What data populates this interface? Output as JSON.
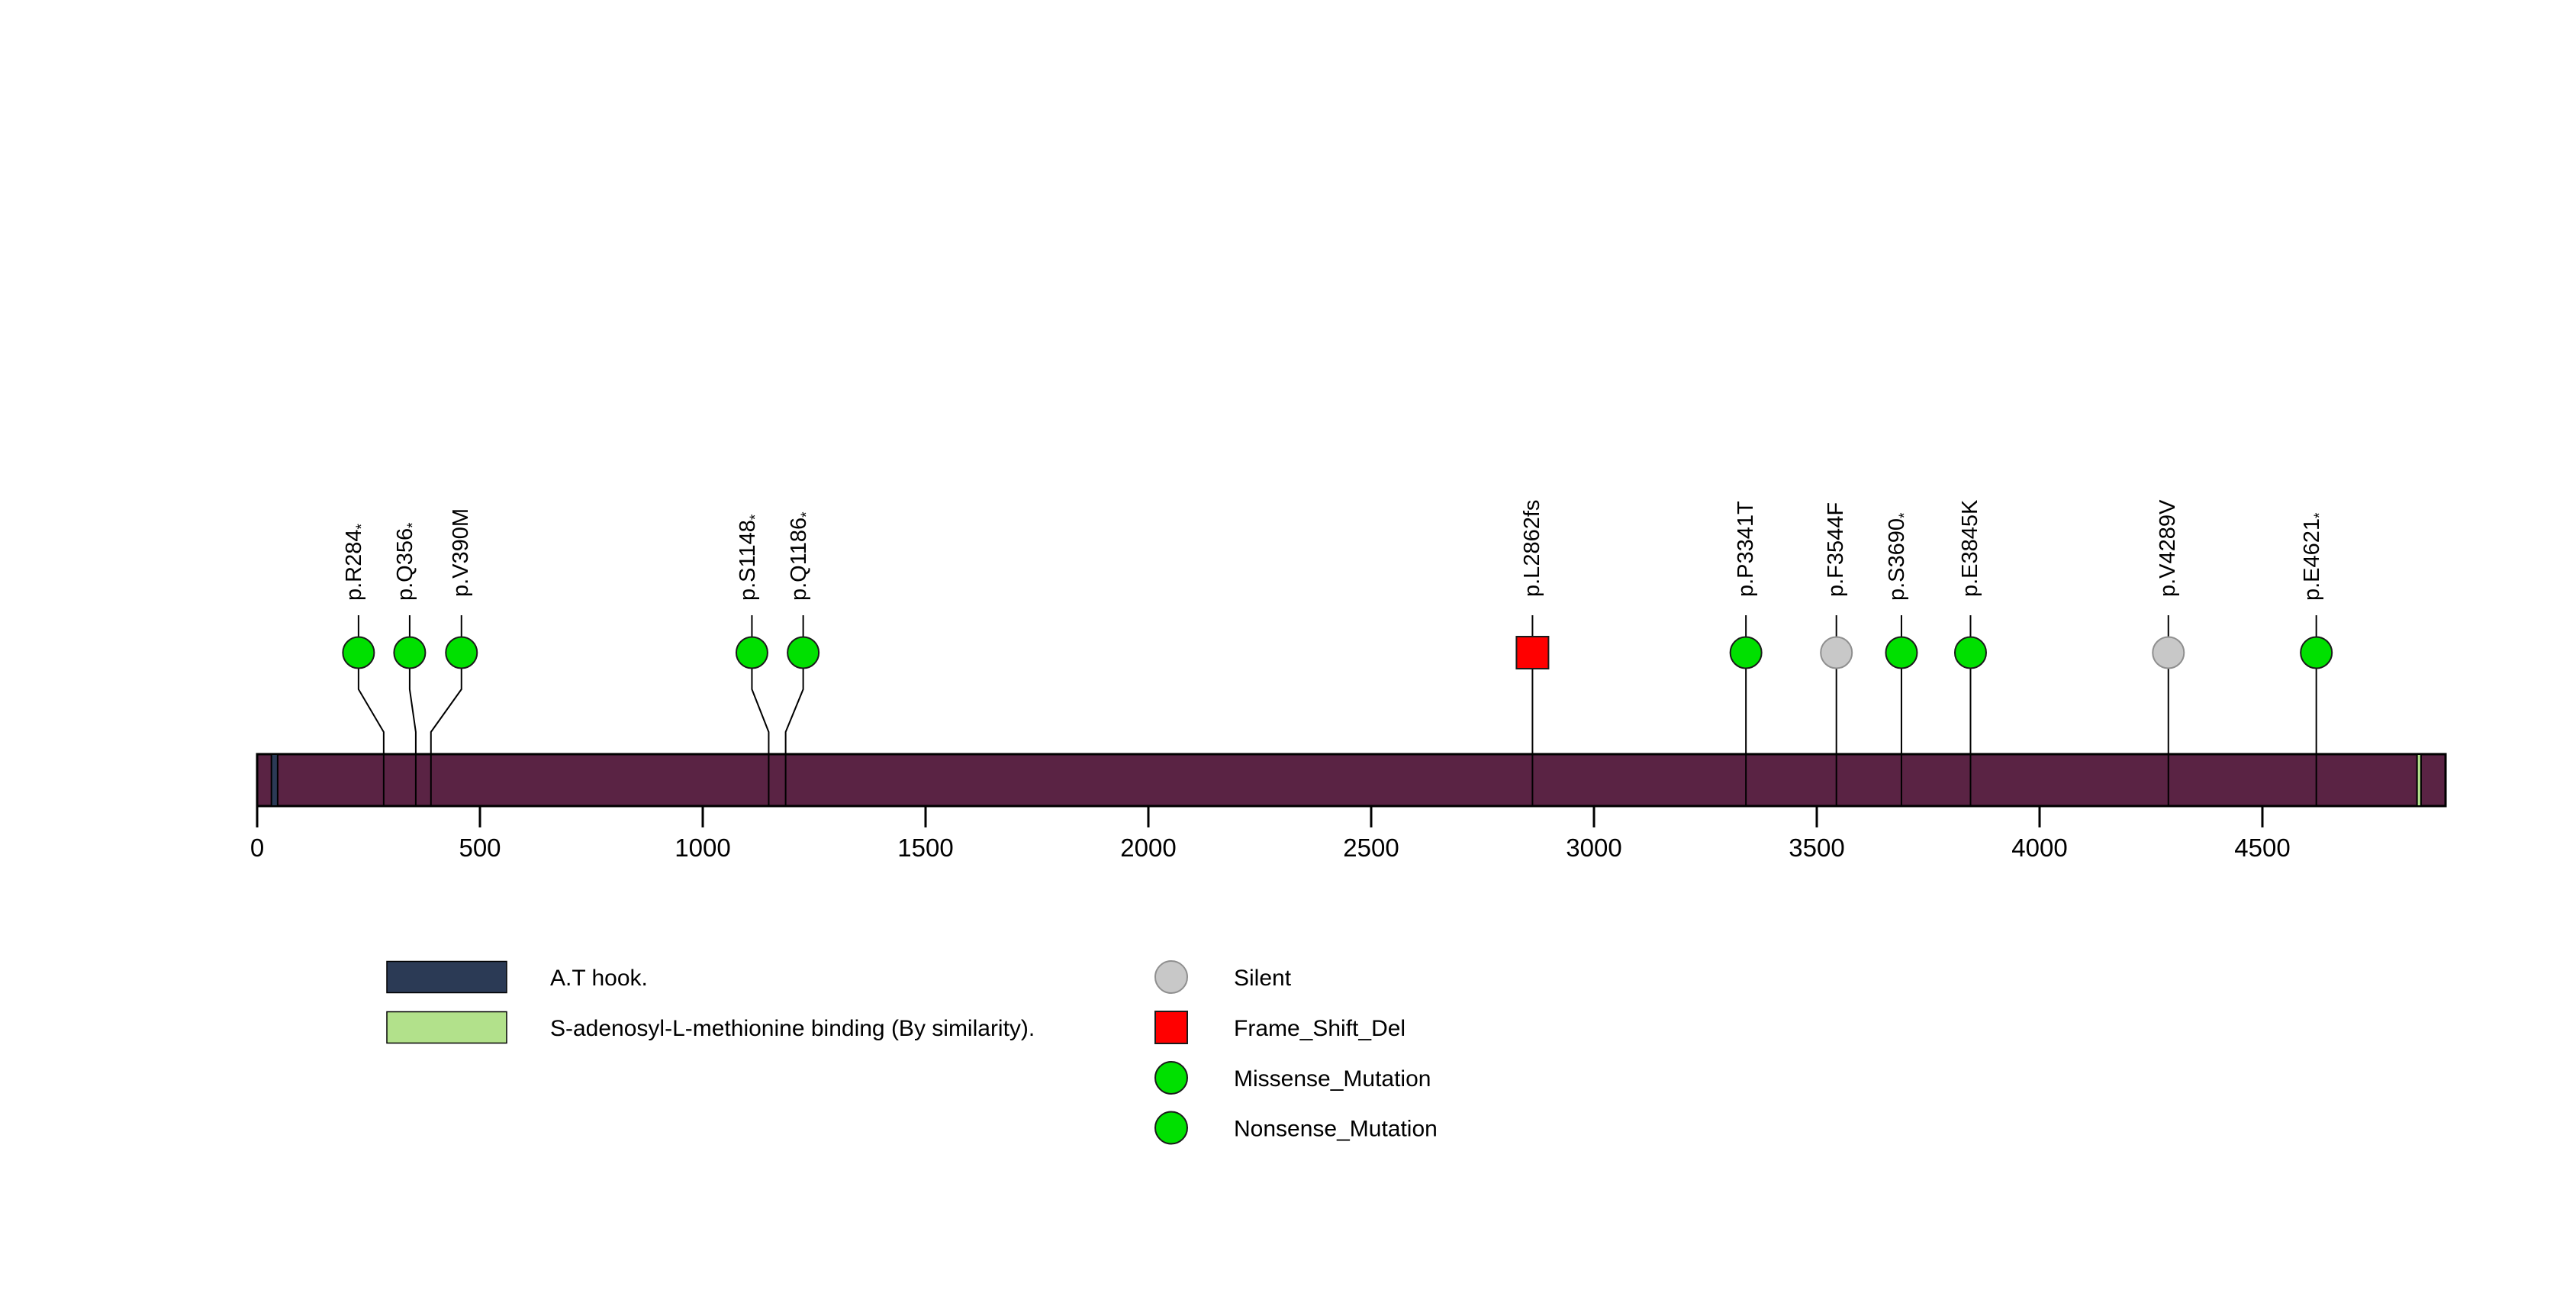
{
  "chart_data": {
    "type": "lollipop",
    "title": "",
    "xlabel": "",
    "ylabel": "",
    "xlim": [
      0,
      4911
    ],
    "grid": false,
    "protein_length": 4911,
    "protein_bar_color": "#5a2344",
    "axis": {
      "ticks": [
        0,
        500,
        1000,
        1500,
        2000,
        2500,
        3000,
        3500,
        4000,
        4500
      ]
    },
    "domains": [
      {
        "name": "A.T hook.",
        "start": 32,
        "end": 46,
        "color": "#2b3a55"
      },
      {
        "name": "S-adenosyl-L-methionine binding (By similarity).",
        "start": 4847,
        "end": 4856,
        "color": "#b2e18b"
      }
    ],
    "mutations": [
      {
        "text": "p.R284",
        "nonsense_star": true,
        "aa": 284,
        "type": "Nonsense_Mutation",
        "shape": "circle",
        "color": "#00e000",
        "dx": -33
      },
      {
        "text": "p.Q356",
        "nonsense_star": true,
        "aa": 356,
        "type": "Nonsense_Mutation",
        "shape": "circle",
        "color": "#00e000",
        "dx": -8
      },
      {
        "text": "p.V390M",
        "nonsense_star": false,
        "aa": 390,
        "type": "Missense_Mutation",
        "shape": "circle",
        "color": "#00e000",
        "dx": 40
      },
      {
        "text": "p.S1148",
        "nonsense_star": true,
        "aa": 1148,
        "type": "Nonsense_Mutation",
        "shape": "circle",
        "color": "#00e000",
        "dx": -22
      },
      {
        "text": "p.Q1186",
        "nonsense_star": true,
        "aa": 1186,
        "type": "Nonsense_Mutation",
        "shape": "circle",
        "color": "#00e000",
        "dx": 23
      },
      {
        "text": "p.L2862fs",
        "nonsense_star": false,
        "aa": 2862,
        "type": "Frame_Shift_Del",
        "shape": "square",
        "color": "#ff0000",
        "dx": 0
      },
      {
        "text": "p.P3341T",
        "nonsense_star": false,
        "aa": 3341,
        "type": "Missense_Mutation",
        "shape": "circle",
        "color": "#00e000",
        "dx": 0
      },
      {
        "text": "p.F3544F",
        "nonsense_star": false,
        "aa": 3544,
        "type": "Silent",
        "shape": "circle",
        "color": "#c8c8c8",
        "dx": 0
      },
      {
        "text": "p.S3690",
        "nonsense_star": true,
        "aa": 3690,
        "type": "Nonsense_Mutation",
        "shape": "circle",
        "color": "#00e000",
        "dx": 0
      },
      {
        "text": "p.E3845K",
        "nonsense_star": false,
        "aa": 3845,
        "type": "Missense_Mutation",
        "shape": "circle",
        "color": "#00e000",
        "dx": 0
      },
      {
        "text": "p.V4289V",
        "nonsense_star": false,
        "aa": 4289,
        "type": "Silent",
        "shape": "circle",
        "color": "#c8c8c8",
        "dx": 0
      },
      {
        "text": "p.E4621",
        "nonsense_star": true,
        "aa": 4621,
        "type": "Nonsense_Mutation",
        "shape": "circle",
        "color": "#00e000",
        "dx": 0
      }
    ],
    "legend_domains": [
      {
        "label": "A.T hook.",
        "color": "#2b3a55"
      },
      {
        "label": "S-adenosyl-L-methionine binding (By similarity).",
        "color": "#b2e18b"
      }
    ],
    "legend_mutation_types": [
      {
        "label": "Silent",
        "shape": "circle",
        "color": "#c8c8c8"
      },
      {
        "label": "Frame_Shift_Del",
        "shape": "square",
        "color": "#ff0000"
      },
      {
        "label": "Missense_Mutation",
        "shape": "circle",
        "color": "#00e000"
      },
      {
        "label": "Nonsense_Mutation",
        "shape": "circle",
        "color": "#00e000"
      }
    ],
    "colors": {
      "stem": "#000000",
      "marker_stroke": "#1a1a1a",
      "silent_stroke": "#8f8f8f",
      "bar_stroke": "#000000",
      "tick_label": "#000000"
    }
  }
}
